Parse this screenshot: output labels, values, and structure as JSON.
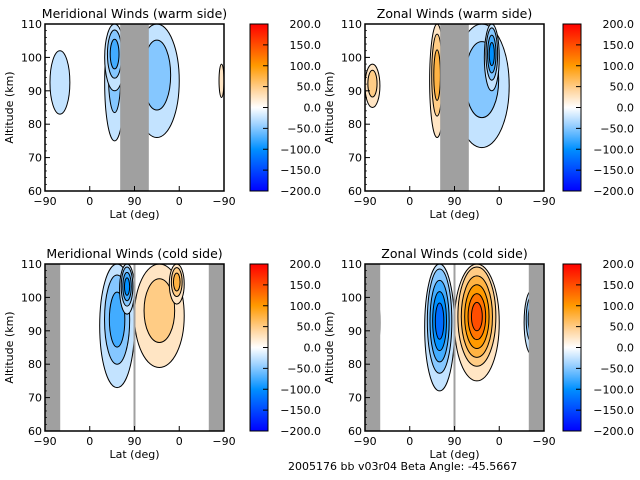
{
  "footer": {
    "text": "2005176 bb v03r04   Beta Angle: -45.5667",
    "date_code": "2005176",
    "mode": "bb",
    "version": "v03r04",
    "beta_angle_label": "Beta Angle:",
    "beta_angle": "-45.5667"
  },
  "chart_data": [
    {
      "id": "meridional-warm",
      "type": "heatmap",
      "title": "Meridional Winds (warm side)",
      "xlabel": "Lat (deg)",
      "ylabel": "Altitude (km)",
      "xticks": [
        "-90",
        "0",
        "90",
        "0",
        "-90"
      ],
      "yticks": [
        "60",
        "70",
        "80",
        "90",
        "100",
        "110"
      ],
      "ylim": [
        60,
        110
      ],
      "colorbar": {
        "range": [
          -200,
          200
        ],
        "ticks": [
          "200.0",
          "150.0",
          "100.0",
          "50.0",
          "0.0",
          "-50.0",
          "-100.0",
          "-150.0",
          "-200.0"
        ]
      },
      "no_data_bands_lat_fraction": [
        [
          0.42,
          0.58
        ]
      ],
      "features": [
        {
          "kind": "negative",
          "level": -25,
          "region": "lat -80..-40, alt 83..102"
        },
        {
          "kind": "negative",
          "level": -50,
          "region": "lat 30..70, alt 75..110"
        },
        {
          "kind": "negative",
          "level": -75,
          "region": "lat 30..70, alt 90..110"
        },
        {
          "kind": "negative",
          "level": -50,
          "region": "descending 90..0, alt 76..110"
        },
        {
          "kind": "positive",
          "level": 25,
          "region": "lat -80..-90 descending, alt 88..98"
        }
      ]
    },
    {
      "id": "zonal-warm",
      "type": "heatmap",
      "title": "Zonal Winds (warm side)",
      "xlabel": "Lat (deg)",
      "ylabel": "Altitude (km)",
      "xticks": [
        "-90",
        "0",
        "90",
        "0",
        "-90"
      ],
      "yticks": [
        "60",
        "70",
        "80",
        "90",
        "100",
        "110"
      ],
      "ylim": [
        60,
        110
      ],
      "colorbar": {
        "range": [
          -200,
          200
        ],
        "ticks": [
          "200.0",
          "150.0",
          "100.0",
          "50.0",
          "0.0",
          "-50.0",
          "-100.0",
          "-150.0",
          "-200.0"
        ]
      },
      "no_data_bands_lat_fraction": [
        [
          0.42,
          0.58
        ]
      ],
      "features": [
        {
          "kind": "positive",
          "level": 50,
          "region": "lat -90..-60, alt 85..98"
        },
        {
          "kind": "positive",
          "level": 75,
          "region": "lat 40..70, alt 76..110"
        },
        {
          "kind": "negative",
          "level": -50,
          "region": "descending 90..-20, alt 73..110"
        },
        {
          "kind": "negative",
          "level": -100,
          "region": "descending 30..0, alt 90..110"
        }
      ]
    },
    {
      "id": "meridional-cold",
      "type": "heatmap",
      "title": "Meridional Winds (cold side)",
      "xlabel": "Lat (deg)",
      "ylabel": "Altitude (km)",
      "xticks": [
        "-90",
        "0",
        "90",
        "0",
        "-90"
      ],
      "yticks": [
        "60",
        "70",
        "80",
        "90",
        "100",
        "110"
      ],
      "ylim": [
        60,
        110
      ],
      "colorbar": {
        "range": [
          -200,
          200
        ],
        "ticks": [
          "200.0",
          "150.0",
          "100.0",
          "50.0",
          "0.0",
          "-50.0",
          "-100.0",
          "-150.0",
          "-200.0"
        ]
      },
      "no_data_bands_lat_fraction": [
        [
          0.0,
          0.085
        ],
        [
          0.915,
          1.0
        ]
      ],
      "features": [
        {
          "kind": "negative",
          "level": -75,
          "region": "lat 20..90, alt 73..110"
        },
        {
          "kind": "negative",
          "level": -100,
          "region": "lat 60..90, alt 95..110"
        },
        {
          "kind": "positive",
          "level": 50,
          "region": "descending 90..-10, alt 79..110"
        },
        {
          "kind": "positive",
          "level": 75,
          "region": "descending 20..-10, alt 98..110"
        }
      ]
    },
    {
      "id": "zonal-cold",
      "type": "heatmap",
      "title": "Zonal Winds (cold side)",
      "xlabel": "Lat (deg)",
      "ylabel": "Altitude (km)",
      "xticks": [
        "-90",
        "0",
        "90",
        "0",
        "-90"
      ],
      "yticks": [
        "60",
        "70",
        "80",
        "90",
        "100",
        "110"
      ],
      "ylim": [
        60,
        110
      ],
      "colorbar": {
        "range": [
          -200,
          200
        ],
        "ticks": [
          "200.0",
          "150.0",
          "100.0",
          "50.0",
          "0.0",
          "-50.0",
          "-100.0",
          "-150.0",
          "-200.0"
        ]
      },
      "no_data_bands_lat_fraction": [
        [
          0.0,
          0.085
        ],
        [
          0.915,
          1.0
        ]
      ],
      "features": [
        {
          "kind": "negative",
          "level": -125,
          "region": "lat 30..90, alt 72..110"
        },
        {
          "kind": "positive",
          "level": 150,
          "region": "descending 90..0, alt 75..110, peak ~100 km"
        },
        {
          "kind": "negative",
          "level": -75,
          "region": "lat -80..-60, alt 83..102"
        },
        {
          "kind": "negative",
          "level": -75,
          "region": "descending -50..-80, alt 83..102"
        }
      ]
    }
  ]
}
